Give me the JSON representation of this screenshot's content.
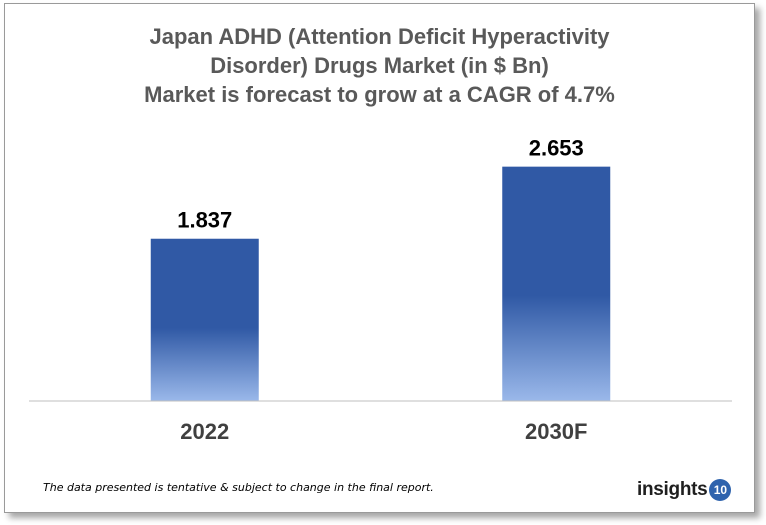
{
  "title_lines": [
    "Japan ADHD (Attention Deficit Hyperactivity",
    "Disorder) Drugs Market (in $ Bn)",
    "Market is forecast to grow at a CAGR of 4.7%"
  ],
  "chart_data": {
    "type": "bar",
    "categories": [
      "2022",
      "2030F"
    ],
    "values": [
      1.837,
      2.653
    ],
    "value_labels": [
      "1.837",
      "2.653"
    ],
    "title": "Japan ADHD (Attention Deficit Hyperactivity Disorder) Drugs Market (in $ Bn) Market is forecast to grow at a CAGR of 4.7%",
    "xlabel": "",
    "ylabel": "",
    "ylim": [
      0,
      3.0
    ],
    "grid": false,
    "legend": "none",
    "colors": {
      "bar_top": "#3059a5",
      "bar_mid": "#3059a5",
      "bar_bottom": "#9ab8ea",
      "axis": "#bfbfbf",
      "label": "#000000",
      "tick_label": "#404040"
    }
  },
  "footnote": "The data presented is tentative & subject to change in the final report.",
  "logo": {
    "text": "insights",
    "number": "10",
    "color": "#2f63ad"
  }
}
